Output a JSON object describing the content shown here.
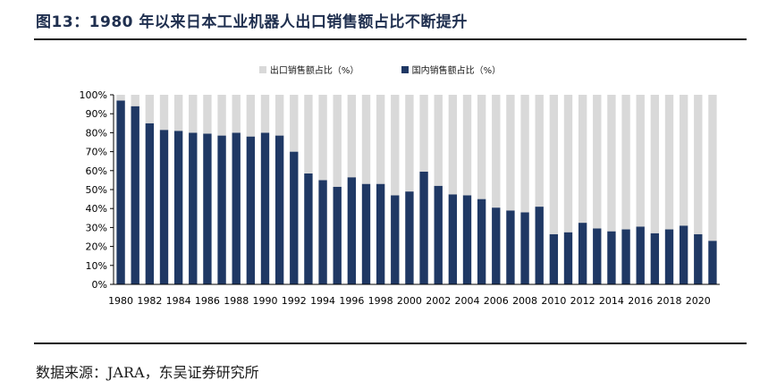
{
  "figure": {
    "title": "图13：1980 年以来日本工业机器人出口销售额占比不断提升",
    "source": "数据来源：JARA，东吴证券研究所"
  },
  "colors": {
    "export": "#d9d9d9",
    "domestic": "#1f3864",
    "axis": "#000000",
    "title": "#1f2f4f"
  },
  "chart_data": {
    "type": "bar",
    "stacked": true,
    "x": [
      1980,
      1981,
      1982,
      1983,
      1984,
      1985,
      1986,
      1987,
      1988,
      1989,
      1990,
      1991,
      1992,
      1993,
      1994,
      1995,
      1996,
      1997,
      1998,
      1999,
      2000,
      2001,
      2002,
      2003,
      2004,
      2005,
      2006,
      2007,
      2008,
      2009,
      2010,
      2011,
      2012,
      2013,
      2014,
      2015,
      2016,
      2017,
      2018,
      2019,
      2020,
      2021
    ],
    "x_tick_labels": [
      "1980",
      "1982",
      "1984",
      "1986",
      "1988",
      "1990",
      "1992",
      "1994",
      "1996",
      "1998",
      "2000",
      "2002",
      "2004",
      "2006",
      "2008",
      "2010",
      "2012",
      "2014",
      "2016",
      "2018",
      "2020"
    ],
    "series": [
      {
        "name": "出口销售额占比（%）",
        "values": [
          3,
          6,
          15,
          18.5,
          19,
          20,
          20.5,
          21.5,
          20,
          22,
          20,
          21.5,
          30,
          41.5,
          45,
          48.5,
          43.5,
          47,
          47,
          53,
          51,
          40.5,
          48,
          52.5,
          53,
          55,
          59.5,
          61,
          62,
          59,
          73.5,
          72.5,
          67.5,
          70.5,
          72,
          71,
          69.5,
          73,
          71,
          69,
          73.5,
          77
        ]
      },
      {
        "name": "国内销售额占比（%）",
        "values": [
          97,
          94,
          85,
          81.5,
          81,
          80,
          79.5,
          78.5,
          80,
          78,
          80,
          78.5,
          70,
          58.5,
          55,
          51.5,
          56.5,
          53,
          53,
          47,
          49,
          59.5,
          52,
          47.5,
          47,
          45,
          40.5,
          39,
          38,
          41,
          26.5,
          27.5,
          32.5,
          29.5,
          28,
          29,
          30.5,
          27,
          29,
          31,
          26.5,
          23
        ]
      }
    ],
    "y_tick_labels": [
      "0%",
      "10%",
      "20%",
      "30%",
      "40%",
      "50%",
      "60%",
      "70%",
      "80%",
      "90%",
      "100%"
    ],
    "ylim": [
      0,
      100
    ],
    "legend_position": "top-center",
    "grid": false
  }
}
